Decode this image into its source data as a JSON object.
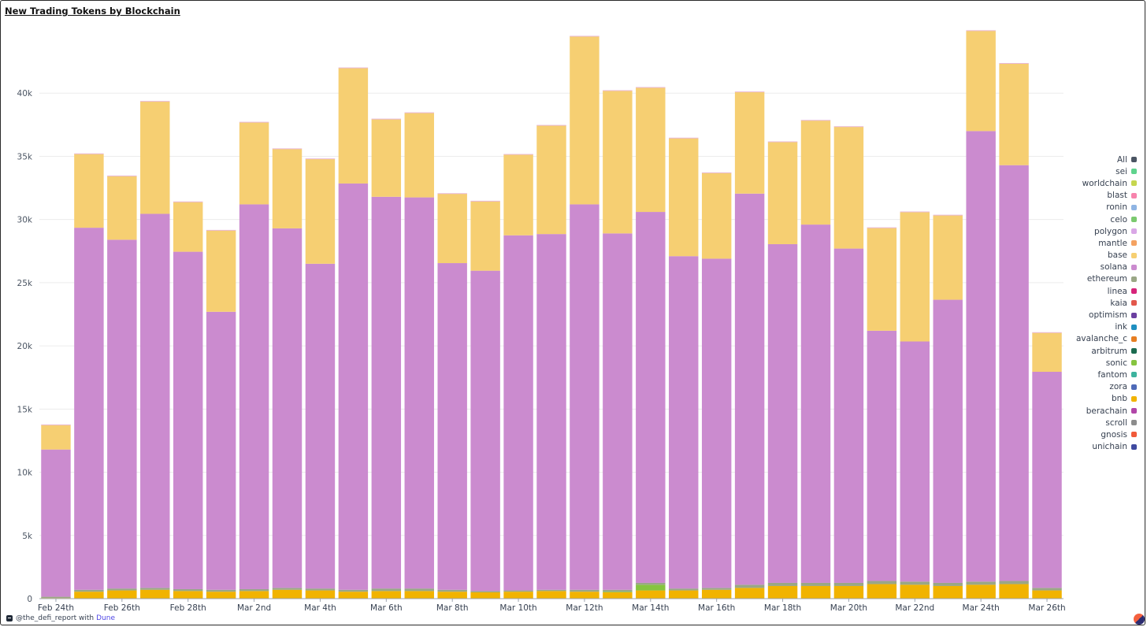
{
  "header": {
    "title": "New Trading Tokens by Blockchain"
  },
  "footer": {
    "handle": "@the_defi_report with",
    "brand": "Dune"
  },
  "legend": {
    "items": [
      {
        "name": "All",
        "color": "#4b5563"
      },
      {
        "name": "sei",
        "color": "#5fd38d"
      },
      {
        "name": "worldchain",
        "color": "#c6d64f"
      },
      {
        "name": "blast",
        "color": "#f783ac"
      },
      {
        "name": "ronin",
        "color": "#8fb4e3"
      },
      {
        "name": "celo",
        "color": "#7bc96f"
      },
      {
        "name": "polygon",
        "color": "#d9a7e6"
      },
      {
        "name": "mantle",
        "color": "#f4a261"
      },
      {
        "name": "base",
        "color": "#f6cf72"
      },
      {
        "name": "solana",
        "color": "#cb8bcf"
      },
      {
        "name": "ethereum",
        "color": "#9aa786"
      },
      {
        "name": "linea",
        "color": "#d6247a"
      },
      {
        "name": "kaia",
        "color": "#e2574c"
      },
      {
        "name": "optimism",
        "color": "#6b3fa0"
      },
      {
        "name": "ink",
        "color": "#1f8fc0"
      },
      {
        "name": "avalanche_c",
        "color": "#e67e22"
      },
      {
        "name": "arbitrum",
        "color": "#1b6b4f"
      },
      {
        "name": "sonic",
        "color": "#86c440"
      },
      {
        "name": "fantom",
        "color": "#3db39e"
      },
      {
        "name": "zora",
        "color": "#4e6ab8"
      },
      {
        "name": "bnb",
        "color": "#f1b300"
      },
      {
        "name": "berachain",
        "color": "#b146a8"
      },
      {
        "name": "scroll",
        "color": "#8c8c8c"
      },
      {
        "name": "gnosis",
        "color": "#f05a3a"
      },
      {
        "name": "unichain",
        "color": "#3f4aa0"
      }
    ]
  },
  "chart_data": {
    "type": "bar",
    "stacked": true,
    "title": "New Trading Tokens by Blockchain",
    "ylim": [
      0,
      45500
    ],
    "y_ticks": [
      0,
      5000,
      10000,
      15000,
      20000,
      25000,
      30000,
      35000,
      40000
    ],
    "y_tick_labels": [
      "0",
      "5k",
      "10k",
      "15k",
      "20k",
      "25k",
      "30k",
      "35k",
      "40k"
    ],
    "x_tick_labels": [
      "Feb 24th",
      "Feb 26th",
      "Feb 28th",
      "Mar 2nd",
      "Mar 4th",
      "Mar 6th",
      "Mar 8th",
      "Mar 10th",
      "Mar 12th",
      "Mar 14th",
      "Mar 16th",
      "Mar 18th",
      "Mar 20th",
      "Mar 22nd",
      "Mar 24th",
      "Mar 26th"
    ],
    "categories": [
      "2025-02-24",
      "2025-02-25",
      "2025-02-26",
      "2025-02-27",
      "2025-02-28",
      "2025-03-01",
      "2025-03-02",
      "2025-03-03",
      "2025-03-04",
      "2025-03-05",
      "2025-03-06",
      "2025-03-07",
      "2025-03-08",
      "2025-03-09",
      "2025-03-10",
      "2025-03-11",
      "2025-03-12",
      "2025-03-13",
      "2025-03-14",
      "2025-03-15",
      "2025-03-16",
      "2025-03-17",
      "2025-03-18",
      "2025-03-19",
      "2025-03-20",
      "2025-03-21",
      "2025-03-22",
      "2025-03-23",
      "2025-03-24",
      "2025-03-25",
      "2025-03-26"
    ],
    "legend_position": "right",
    "grid": true,
    "series": [
      {
        "name": "bnb",
        "color": "#f1b300",
        "values": [
          50,
          550,
          650,
          700,
          600,
          550,
          600,
          700,
          650,
          550,
          600,
          600,
          550,
          500,
          550,
          600,
          550,
          500,
          650,
          650,
          700,
          850,
          1000,
          1000,
          1000,
          1150,
          1100,
          1000,
          1100,
          1150,
          650
        ]
      },
      {
        "name": "sonic",
        "color": "#86c440",
        "values": [
          0,
          0,
          0,
          0,
          0,
          0,
          0,
          0,
          0,
          0,
          0,
          0,
          0,
          0,
          0,
          0,
          0,
          50,
          450,
          0,
          0,
          0,
          0,
          0,
          0,
          0,
          0,
          0,
          0,
          0,
          0
        ]
      },
      {
        "name": "ethereum",
        "color": "#9aa786",
        "values": [
          100,
          150,
          150,
          150,
          150,
          150,
          150,
          150,
          150,
          150,
          200,
          200,
          150,
          100,
          100,
          100,
          150,
          150,
          150,
          150,
          150,
          250,
          250,
          250,
          250,
          250,
          250,
          250,
          250,
          250,
          200
        ]
      },
      {
        "name": "solana",
        "color": "#cb8bcf",
        "values": [
          11650,
          28650,
          27600,
          29600,
          26700,
          22000,
          30450,
          28450,
          25700,
          32150,
          31000,
          30950,
          25850,
          25350,
          28100,
          28150,
          30500,
          28200,
          29350,
          26300,
          26050,
          30950,
          26800,
          28350,
          26450,
          19800,
          19000,
          22400,
          35650,
          32900,
          17100
        ]
      },
      {
        "name": "base",
        "color": "#f6cf72",
        "values": [
          1950,
          5850,
          5050,
          8900,
          3950,
          6450,
          6500,
          6300,
          8300,
          9150,
          6150,
          6700,
          5500,
          5500,
          6400,
          8600,
          13300,
          11300,
          9850,
          9350,
          6800,
          8050,
          8100,
          8250,
          9650,
          8150,
          10250,
          6700,
          7950,
          8050,
          3100
        ]
      }
    ]
  }
}
